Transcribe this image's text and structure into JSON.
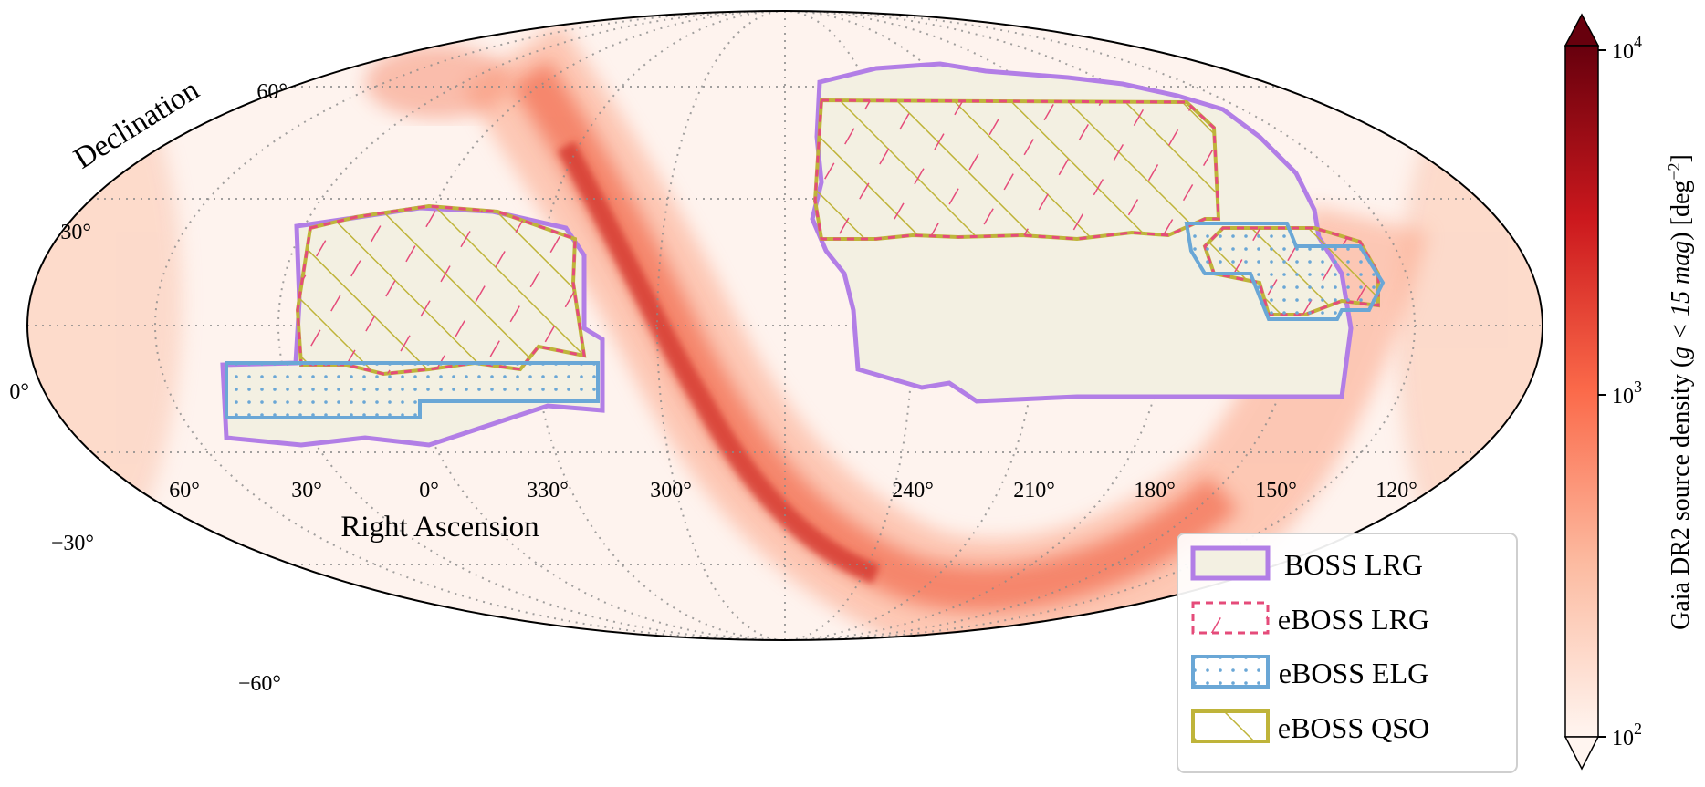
{
  "axes": {
    "xlabel": "Right Ascension",
    "ylabel": "Declination",
    "ra_ticks": [
      "60°",
      "30°",
      "0°",
      "330°",
      "300°",
      "240°",
      "210°",
      "180°",
      "150°",
      "120°"
    ],
    "dec_ticks": [
      "60°",
      "30°",
      "0°",
      "−30°",
      "−60°"
    ]
  },
  "legend": {
    "position": "lower-right",
    "items": [
      {
        "label": "BOSS LRG",
        "edge": "#b27ee6",
        "face": "#f3f0e2",
        "hatch": "none"
      },
      {
        "label": "eBOSS LRG",
        "edge": "#e54b7a",
        "face": "none",
        "hatch": "backslash-dashed"
      },
      {
        "label": "eBOSS ELG",
        "edge": "#6aa7d6",
        "face": "none",
        "hatch": "dots"
      },
      {
        "label": "eBOSS QSO",
        "edge": "#bfb43a",
        "face": "none",
        "hatch": "slash"
      }
    ]
  },
  "colorbar": {
    "label_prefix": "Gaia DR2 source density (",
    "label_math": "g < 15 mag",
    "label_suffix": ") [deg",
    "label_exp": "−2",
    "label_end": "]",
    "scale": "log",
    "range": [
      100,
      10000
    ],
    "tick_min_base": "10",
    "tick_min_exp": "2",
    "tick_mid_base": "10",
    "tick_mid_exp": "3",
    "tick_max_base": "10",
    "tick_max_exp": "4",
    "cmap": "Reds",
    "extend": "both"
  },
  "map_data": {
    "projection": "mollweide",
    "background": "Gaia DR2 stellar density (Milky Way band)",
    "footprints": [
      "BOSS LRG",
      "eBOSS LRG",
      "eBOSS ELG",
      "eBOSS QSO"
    ]
  }
}
